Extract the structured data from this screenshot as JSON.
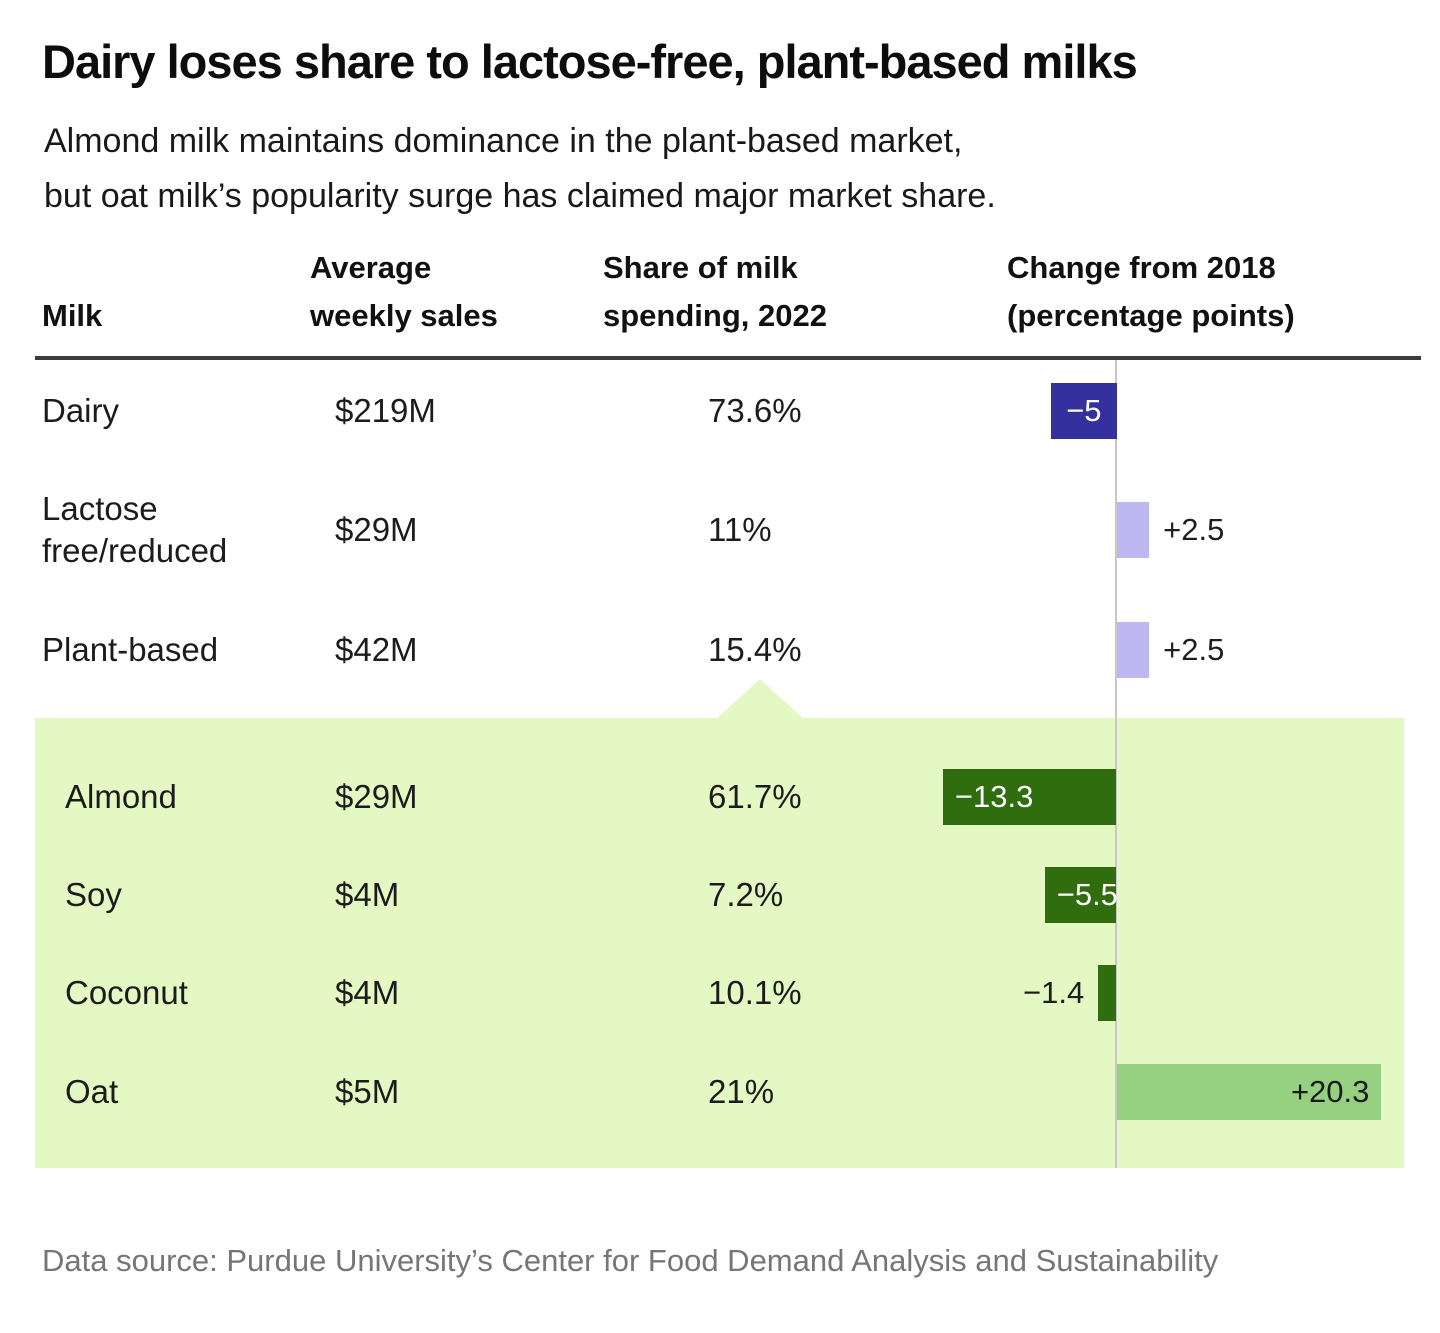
{
  "title": "Dairy loses share to lactose-free, plant-based milks",
  "subtitle": {
    "line1": "Almond milk maintains dominance in the plant-based market,",
    "line2": "but oat milk’s popularity surge has claimed major market share."
  },
  "table": {
    "headers": [
      {
        "lines": [
          "Milk"
        ]
      },
      {
        "lines": [
          "Average",
          "weekly sales"
        ]
      },
      {
        "lines": [
          "Share of milk",
          "spending, 2022"
        ]
      },
      {
        "lines": [
          "Change from 2018",
          "(percentage points)"
        ]
      }
    ]
  },
  "chart_data": {
    "type": "table",
    "columns": [
      "Milk",
      "Average weekly sales",
      "Share of milk spending, 2022",
      "Change from 2018 (percentage points)"
    ],
    "rows": [
      {
        "milk": "Dairy",
        "sales": "$219M",
        "share": "73.6%",
        "change": -5,
        "change_label": "−5",
        "group": "all-milk",
        "indent": false,
        "bar_color": "#34319e",
        "value_color": "#ffffff",
        "value_placement": "inside-center"
      },
      {
        "milk": "Lactose free/reduced",
        "sales": "$29M",
        "share": "11%",
        "change": 2.5,
        "change_label": "+2.5",
        "group": "all-milk",
        "indent": false,
        "bar_color": "#bdb7f2",
        "value_color": "#1e1e1e",
        "value_placement": "outside-right"
      },
      {
        "milk": "Plant-based",
        "sales": "$42M",
        "share": "15.4%",
        "change": 2.5,
        "change_label": "+2.5",
        "group": "all-milk",
        "indent": false,
        "bar_color": "#bdb7f2",
        "value_color": "#1e1e1e",
        "value_placement": "outside-right"
      },
      {
        "milk": "Almond",
        "sales": "$29M",
        "share": "61.7%",
        "change": -13.3,
        "change_label": "−13.3",
        "group": "plant-based",
        "indent": true,
        "bar_color": "#2f6d0e",
        "value_color": "#ffffff",
        "value_placement": "inside-left"
      },
      {
        "milk": "Soy",
        "sales": "$4M",
        "share": "7.2%",
        "change": -5.5,
        "change_label": "−5.5",
        "group": "plant-based",
        "indent": true,
        "bar_color": "#2f6d0e",
        "value_color": "#ffffff",
        "value_placement": "inside-center"
      },
      {
        "milk": "Coconut",
        "sales": "$4M",
        "share": "10.1%",
        "change": -1.4,
        "change_label": "−1.4",
        "group": "plant-based",
        "indent": true,
        "bar_color": "#2f6d0e",
        "value_color": "#1e1e1e",
        "value_placement": "outside-left"
      },
      {
        "milk": "Oat",
        "sales": "$5M",
        "share": "21%",
        "change": 20.3,
        "change_label": "+20.3",
        "group": "plant-based",
        "indent": true,
        "bar_color": "#95d181",
        "value_color": "#1a1a1a",
        "value_placement": "inside-right"
      }
    ],
    "axis": {
      "zero_line_color": "#c8c8c8"
    },
    "group_panel": {
      "group": "plant-based",
      "color": "#e3f8c2"
    }
  },
  "footer": {
    "source": "Data source: Purdue University’s Center for Food Demand Analysis and Sustainability"
  },
  "colors": {
    "header_rule": "#3c3c3c",
    "text": "#1a1a1a",
    "footer_text": "#767676"
  }
}
